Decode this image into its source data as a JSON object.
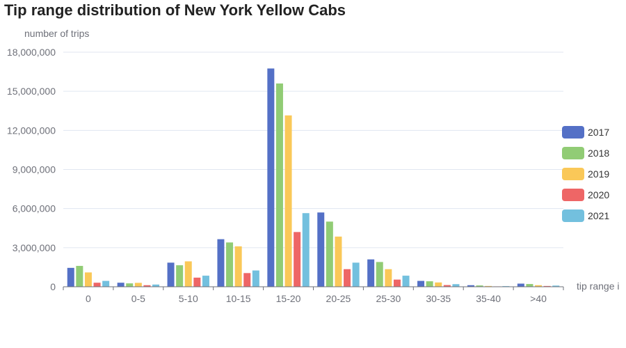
{
  "chart_data": {
    "type": "bar",
    "title": "Tip range distribution of New York Yellow Cabs",
    "ylabel": "number of trips",
    "xlabel": "tip range i",
    "ylim": [
      0,
      18000000
    ],
    "y_ticks": [
      "0",
      "3,000,000",
      "6,000,000",
      "9,000,000",
      "12,000,000",
      "15,000,000",
      "18,000,000"
    ],
    "categories": [
      "0",
      "0-5",
      "5-10",
      "10-15",
      "15-20",
      "20-25",
      "25-30",
      "30-35",
      "35-40",
      ">40"
    ],
    "legend_position": "right",
    "grid": true,
    "series": [
      {
        "name": "2017",
        "color": "#5470c6",
        "values": [
          1450000,
          310000,
          1850000,
          3650000,
          16750000,
          5700000,
          2100000,
          450000,
          120000,
          240000
        ]
      },
      {
        "name": "2018",
        "color": "#91cc75",
        "values": [
          1600000,
          260000,
          1650000,
          3400000,
          15600000,
          5000000,
          1900000,
          420000,
          100000,
          210000
        ]
      },
      {
        "name": "2019",
        "color": "#fac858",
        "values": [
          1100000,
          300000,
          1950000,
          3100000,
          13150000,
          3850000,
          1350000,
          330000,
          60000,
          120000
        ]
      },
      {
        "name": "2020",
        "color": "#ee6666",
        "values": [
          310000,
          120000,
          700000,
          1050000,
          4200000,
          1350000,
          550000,
          130000,
          30000,
          60000
        ]
      },
      {
        "name": "2021",
        "color": "#73c0de",
        "values": [
          450000,
          170000,
          850000,
          1250000,
          5650000,
          1850000,
          850000,
          200000,
          50000,
          90000
        ]
      }
    ]
  }
}
